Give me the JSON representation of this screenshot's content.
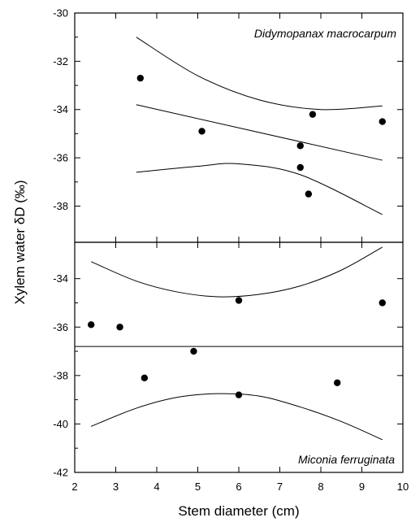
{
  "chart_data": {
    "type": "scatter",
    "xlabel": "Stem diameter (cm)",
    "ylabel": "Xylem water δD (‰)",
    "xlim": [
      2,
      10
    ],
    "x_ticks": [
      "2",
      "3",
      "4",
      "5",
      "6",
      "7",
      "8",
      "9",
      "10"
    ],
    "panels": [
      {
        "label": "Didymopanax macrocarpum",
        "label_position": "top-right",
        "ylim": [
          -39.5,
          -30
        ],
        "y_ticks": [
          "-30",
          "-32",
          "-34",
          "-36",
          "-38"
        ],
        "points": [
          {
            "x": 3.6,
            "y": -32.7
          },
          {
            "x": 5.1,
            "y": -34.9
          },
          {
            "x": 7.5,
            "y": -35.5
          },
          {
            "x": 7.5,
            "y": -36.4
          },
          {
            "x": 7.7,
            "y": -37.5
          },
          {
            "x": 7.8,
            "y": -34.2
          },
          {
            "x": 9.5,
            "y": -34.5
          }
        ],
        "regression_line": [
          {
            "x": 3.5,
            "y": -33.8
          },
          {
            "x": 9.5,
            "y": -36.1
          }
        ],
        "ci_upper": [
          {
            "x": 3.5,
            "y": -31.0
          },
          {
            "x": 5.0,
            "y": -32.6
          },
          {
            "x": 6.5,
            "y": -33.6
          },
          {
            "x": 8.0,
            "y": -34.0
          },
          {
            "x": 9.5,
            "y": -33.85
          }
        ],
        "ci_lower": [
          {
            "x": 3.5,
            "y": -36.6
          },
          {
            "x": 5.0,
            "y": -36.35
          },
          {
            "x": 6.0,
            "y": -36.25
          },
          {
            "x": 7.5,
            "y": -36.7
          },
          {
            "x": 9.5,
            "y": -38.35
          }
        ]
      },
      {
        "label": "Miconia ferruginata",
        "label_position": "bottom-right",
        "ylim": [
          -42,
          -32.5
        ],
        "y_ticks": [
          "-34",
          "-36",
          "-38",
          "-40",
          "-42"
        ],
        "points": [
          {
            "x": 2.4,
            "y": -35.9
          },
          {
            "x": 3.1,
            "y": -36.0
          },
          {
            "x": 3.7,
            "y": -38.1
          },
          {
            "x": 4.9,
            "y": -37.0
          },
          {
            "x": 6.0,
            "y": -34.9
          },
          {
            "x": 6.0,
            "y": -38.8
          },
          {
            "x": 8.4,
            "y": -38.3
          },
          {
            "x": 9.5,
            "y": -35.0
          }
        ],
        "curve_upper": [
          {
            "x": 2.4,
            "y": -33.3
          },
          {
            "x": 3.5,
            "y": -34.1
          },
          {
            "x": 4.5,
            "y": -34.55
          },
          {
            "x": 5.5,
            "y": -34.75
          },
          {
            "x": 6.5,
            "y": -34.65
          },
          {
            "x": 7.5,
            "y": -34.3
          },
          {
            "x": 8.5,
            "y": -33.65
          },
          {
            "x": 9.5,
            "y": -32.7
          }
        ],
        "curve_lower": [
          {
            "x": 2.4,
            "y": -40.1
          },
          {
            "x": 3.5,
            "y": -39.35
          },
          {
            "x": 4.5,
            "y": -38.9
          },
          {
            "x": 5.5,
            "y": -38.75
          },
          {
            "x": 6.5,
            "y": -38.85
          },
          {
            "x": 7.5,
            "y": -39.3
          },
          {
            "x": 8.5,
            "y": -39.9
          },
          {
            "x": 9.5,
            "y": -40.65
          }
        ],
        "divider_y": -36.8
      }
    ]
  }
}
